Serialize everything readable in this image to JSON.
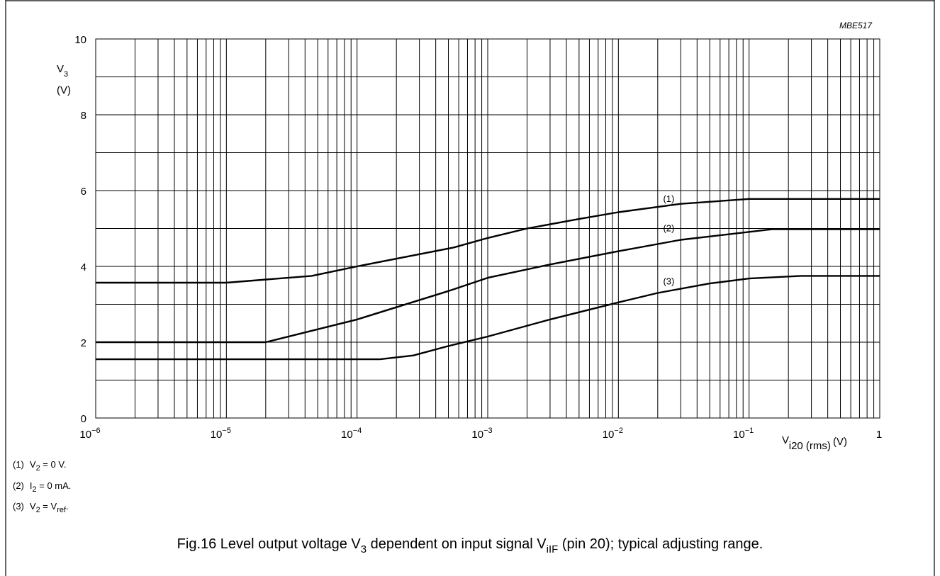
{
  "figure_ref": "MBE517",
  "chart_data": {
    "type": "line",
    "x_scale": "log",
    "xlim": [
      1e-06,
      1
    ],
    "ylim": [
      0,
      10
    ],
    "grid": true,
    "ylabel": {
      "main": "V",
      "sub": "3",
      "unit": "(V)"
    },
    "xlabel": {
      "main": "V",
      "sub": "i20 (rms)",
      "unit": "(V)"
    },
    "x_ticks": [
      {
        "base": "10",
        "exp": "−6"
      },
      {
        "base": "10",
        "exp": "−5"
      },
      {
        "base": "10",
        "exp": "−4"
      },
      {
        "base": "10",
        "exp": "−3"
      },
      {
        "base": "10",
        "exp": "−2"
      },
      {
        "base": "10",
        "exp": "−1"
      },
      {
        "base": "1",
        "exp": ""
      }
    ],
    "y_ticks": [
      "0",
      "2",
      "4",
      "6",
      "8",
      "10"
    ],
    "series": [
      {
        "name": "(1)",
        "x": [
          1e-06,
          1e-05,
          4.5e-05,
          0.0001,
          0.00055,
          0.001,
          0.002,
          0.005,
          0.01,
          0.03,
          0.1,
          1
        ],
        "y": [
          3.57,
          3.57,
          3.75,
          4.0,
          4.5,
          4.75,
          5.0,
          5.25,
          5.43,
          5.65,
          5.78,
          5.78
        ]
      },
      {
        "name": "(2)",
        "x": [
          1e-06,
          2e-05,
          0.0001,
          0.0005,
          0.001,
          0.003,
          0.01,
          0.03,
          0.15,
          1
        ],
        "y": [
          2.0,
          2.0,
          2.6,
          3.35,
          3.7,
          4.05,
          4.4,
          4.7,
          4.98,
          4.98
        ]
      },
      {
        "name": "(3)",
        "x": [
          1e-06,
          0.00015,
          0.00027,
          0.0005,
          0.001,
          0.003,
          0.01,
          0.02,
          0.05,
          0.1,
          0.25,
          1
        ],
        "y": [
          1.55,
          1.55,
          1.65,
          1.9,
          2.15,
          2.6,
          3.05,
          3.3,
          3.55,
          3.68,
          3.75,
          3.75
        ]
      }
    ]
  },
  "legend_notes": [
    {
      "label": "(1)",
      "a": "V",
      "a_sub": "2",
      "rest": " = 0 V.",
      "b": "",
      "b_sub": "",
      "end": ""
    },
    {
      "label": "(2)",
      "a": "I",
      "a_sub": "2",
      "rest": " = 0 mA.",
      "b": "",
      "b_sub": "",
      "end": ""
    },
    {
      "label": "(3)",
      "a": "V",
      "a_sub": "2",
      "rest": " = V",
      "b": "",
      "b_sub": "ref",
      "end": "."
    }
  ],
  "caption": {
    "prefix": "Fig.16  Level output voltage V",
    "sub1": "3",
    "middle": " dependent on input signal V",
    "sub2": "iIF",
    "suffix": " (pin 20); typical adjusting range."
  }
}
